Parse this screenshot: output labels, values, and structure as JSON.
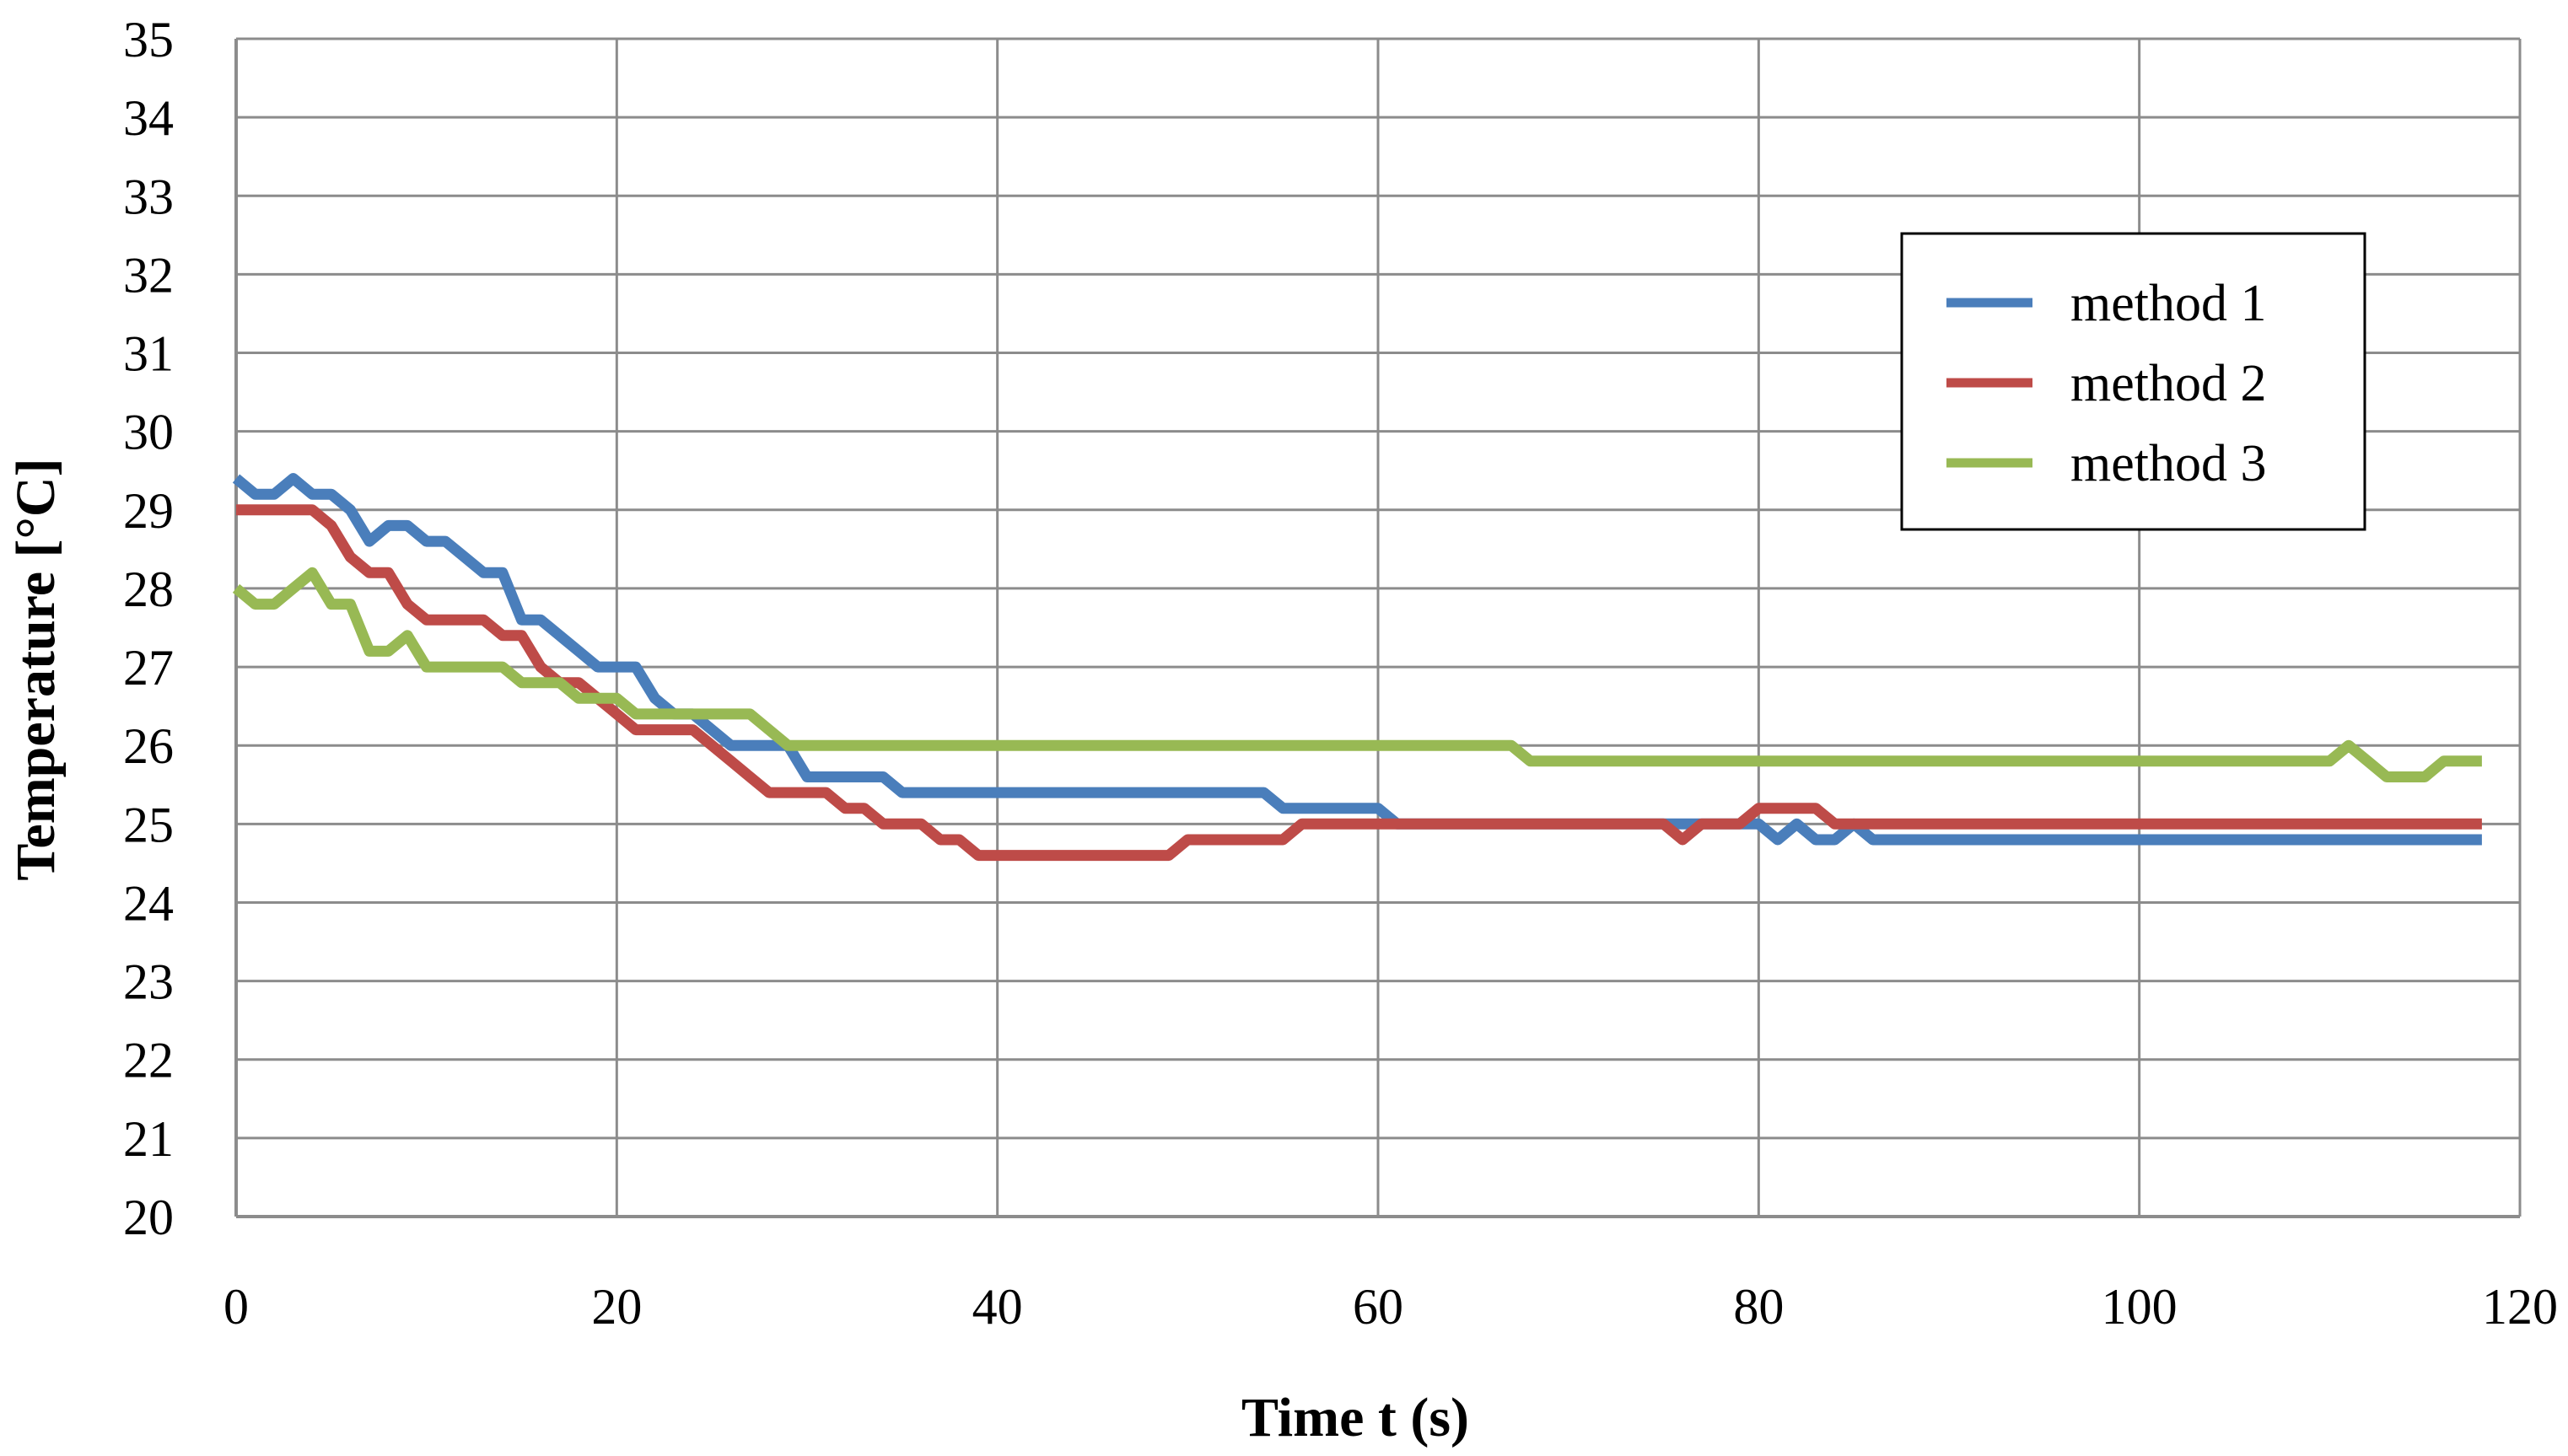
{
  "chart_data": {
    "type": "line",
    "title": "",
    "xlabel": "Time t (s)",
    "ylabel": "Temperature  [°C]",
    "xlim": [
      0,
      120
    ],
    "ylim": [
      20,
      35
    ],
    "xticks": [
      0,
      20,
      40,
      60,
      80,
      100,
      120
    ],
    "yticks": [
      20,
      21,
      22,
      23,
      24,
      25,
      26,
      27,
      28,
      29,
      30,
      31,
      32,
      33,
      34,
      35
    ],
    "grid": true,
    "legend_position": "top-right",
    "series": [
      {
        "name": "method 1",
        "color": "#4a7ebb",
        "points": [
          [
            0,
            29.4
          ],
          [
            1,
            29.2
          ],
          [
            2,
            29.2
          ],
          [
            3,
            29.4
          ],
          [
            4,
            29.2
          ],
          [
            5,
            29.2
          ],
          [
            6,
            29.0
          ],
          [
            7,
            28.6
          ],
          [
            8,
            28.8
          ],
          [
            9,
            28.8
          ],
          [
            10,
            28.6
          ],
          [
            11,
            28.6
          ],
          [
            12,
            28.4
          ],
          [
            13,
            28.2
          ],
          [
            14,
            28.2
          ],
          [
            15,
            27.6
          ],
          [
            16,
            27.6
          ],
          [
            17,
            27.4
          ],
          [
            18,
            27.2
          ],
          [
            19,
            27.0
          ],
          [
            20,
            27.0
          ],
          [
            21,
            27.0
          ],
          [
            22,
            26.6
          ],
          [
            23,
            26.4
          ],
          [
            24,
            26.4
          ],
          [
            25,
            26.2
          ],
          [
            26,
            26.0
          ],
          [
            27,
            26.0
          ],
          [
            28,
            26.0
          ],
          [
            29,
            26.0
          ],
          [
            30,
            25.6
          ],
          [
            31,
            25.6
          ],
          [
            32,
            25.6
          ],
          [
            33,
            25.6
          ],
          [
            34,
            25.6
          ],
          [
            35,
            25.4
          ],
          [
            36,
            25.4
          ],
          [
            40,
            25.4
          ],
          [
            45,
            25.4
          ],
          [
            50,
            25.4
          ],
          [
            54,
            25.4
          ],
          [
            55,
            25.2
          ],
          [
            56,
            25.2
          ],
          [
            57,
            25.2
          ],
          [
            58,
            25.2
          ],
          [
            59,
            25.2
          ],
          [
            60,
            25.2
          ],
          [
            61,
            25.0
          ],
          [
            65,
            25.0
          ],
          [
            70,
            25.0
          ],
          [
            75,
            25.0
          ],
          [
            76,
            25.0
          ],
          [
            77,
            25.0
          ],
          [
            78,
            25.0
          ],
          [
            79,
            25.0
          ],
          [
            80,
            25.0
          ],
          [
            81,
            24.8
          ],
          [
            82,
            25.0
          ],
          [
            83,
            24.8
          ],
          [
            84,
            24.8
          ],
          [
            85,
            25.0
          ],
          [
            86,
            24.8
          ],
          [
            90,
            24.8
          ],
          [
            95,
            24.8
          ],
          [
            100,
            24.8
          ],
          [
            105,
            24.8
          ],
          [
            110,
            24.8
          ],
          [
            115,
            24.8
          ],
          [
            118,
            24.8
          ]
        ]
      },
      {
        "name": "method 2",
        "color": "#be4b48",
        "points": [
          [
            0,
            29.0
          ],
          [
            1,
            29.0
          ],
          [
            2,
            29.0
          ],
          [
            3,
            29.0
          ],
          [
            4,
            29.0
          ],
          [
            5,
            28.8
          ],
          [
            6,
            28.4
          ],
          [
            7,
            28.2
          ],
          [
            8,
            28.2
          ],
          [
            9,
            27.8
          ],
          [
            10,
            27.6
          ],
          [
            11,
            27.6
          ],
          [
            12,
            27.6
          ],
          [
            13,
            27.6
          ],
          [
            14,
            27.4
          ],
          [
            15,
            27.4
          ],
          [
            16,
            27.0
          ],
          [
            17,
            26.8
          ],
          [
            18,
            26.8
          ],
          [
            19,
            26.6
          ],
          [
            20,
            26.4
          ],
          [
            21,
            26.2
          ],
          [
            22,
            26.2
          ],
          [
            23,
            26.2
          ],
          [
            24,
            26.2
          ],
          [
            25,
            26.0
          ],
          [
            26,
            25.8
          ],
          [
            27,
            25.6
          ],
          [
            28,
            25.4
          ],
          [
            29,
            25.4
          ],
          [
            30,
            25.4
          ],
          [
            31,
            25.4
          ],
          [
            32,
            25.2
          ],
          [
            33,
            25.2
          ],
          [
            34,
            25.0
          ],
          [
            35,
            25.0
          ],
          [
            36,
            25.0
          ],
          [
            37,
            24.8
          ],
          [
            38,
            24.8
          ],
          [
            39,
            24.6
          ],
          [
            40,
            24.6
          ],
          [
            45,
            24.6
          ],
          [
            49,
            24.6
          ],
          [
            50,
            24.8
          ],
          [
            51,
            24.8
          ],
          [
            55,
            24.8
          ],
          [
            56,
            25.0
          ],
          [
            60,
            25.0
          ],
          [
            65,
            25.0
          ],
          [
            70,
            25.0
          ],
          [
            75,
            25.0
          ],
          [
            76,
            24.8
          ],
          [
            77,
            25.0
          ],
          [
            78,
            25.0
          ],
          [
            79,
            25.0
          ],
          [
            80,
            25.2
          ],
          [
            81,
            25.2
          ],
          [
            82,
            25.2
          ],
          [
            83,
            25.2
          ],
          [
            84,
            25.0
          ],
          [
            90,
            25.0
          ],
          [
            100,
            25.0
          ],
          [
            110,
            25.0
          ],
          [
            118,
            25.0
          ]
        ]
      },
      {
        "name": "method 3",
        "color": "#98b954",
        "points": [
          [
            0,
            28.0
          ],
          [
            1,
            27.8
          ],
          [
            2,
            27.8
          ],
          [
            3,
            28.0
          ],
          [
            4,
            28.2
          ],
          [
            5,
            27.8
          ],
          [
            6,
            27.8
          ],
          [
            7,
            27.2
          ],
          [
            8,
            27.2
          ],
          [
            9,
            27.4
          ],
          [
            10,
            27.0
          ],
          [
            11,
            27.0
          ],
          [
            12,
            27.0
          ],
          [
            13,
            27.0
          ],
          [
            14,
            27.0
          ],
          [
            15,
            26.8
          ],
          [
            16,
            26.8
          ],
          [
            17,
            26.8
          ],
          [
            18,
            26.6
          ],
          [
            19,
            26.6
          ],
          [
            20,
            26.6
          ],
          [
            21,
            26.4
          ],
          [
            22,
            26.4
          ],
          [
            23,
            26.4
          ],
          [
            24,
            26.4
          ],
          [
            25,
            26.4
          ],
          [
            26,
            26.4
          ],
          [
            27,
            26.4
          ],
          [
            28,
            26.2
          ],
          [
            29,
            26.0
          ],
          [
            30,
            26.0
          ],
          [
            40,
            26.0
          ],
          [
            50,
            26.0
          ],
          [
            60,
            26.0
          ],
          [
            67,
            26.0
          ],
          [
            68,
            25.8
          ],
          [
            70,
            25.8
          ],
          [
            80,
            25.8
          ],
          [
            90,
            25.8
          ],
          [
            100,
            25.8
          ],
          [
            110,
            25.8
          ],
          [
            111,
            26.0
          ],
          [
            112,
            25.8
          ],
          [
            113,
            25.6
          ],
          [
            114,
            25.6
          ],
          [
            115,
            25.6
          ],
          [
            116,
            25.8
          ],
          [
            117,
            25.8
          ],
          [
            118,
            25.8
          ]
        ]
      }
    ]
  }
}
